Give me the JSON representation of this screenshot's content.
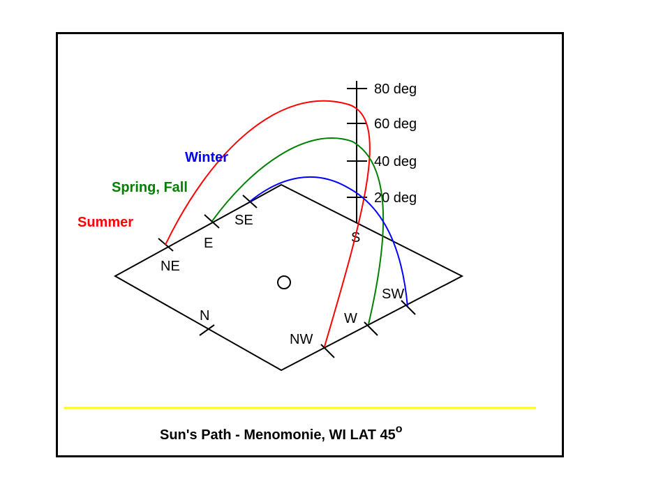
{
  "caption": {
    "text": "Sun's Path - Menomonie, WI LAT 45",
    "superscript": "o"
  },
  "legend": {
    "winter": {
      "label": "Winter",
      "color": "#0000ff"
    },
    "spring_fall": {
      "label": "Spring, Fall",
      "color": "#008000"
    },
    "summer": {
      "label": "Summer",
      "color": "#ff0000"
    }
  },
  "compass": {
    "n": "N",
    "ne": "NE",
    "e": "E",
    "se": "SE",
    "s": "S",
    "sw": "SW",
    "w": "W",
    "nw": "NW"
  },
  "altitude_scale": {
    "ticks": [
      "80 deg",
      "60 deg",
      "40 deg",
      "20 deg"
    ]
  },
  "divider_color": "#ffff00"
}
